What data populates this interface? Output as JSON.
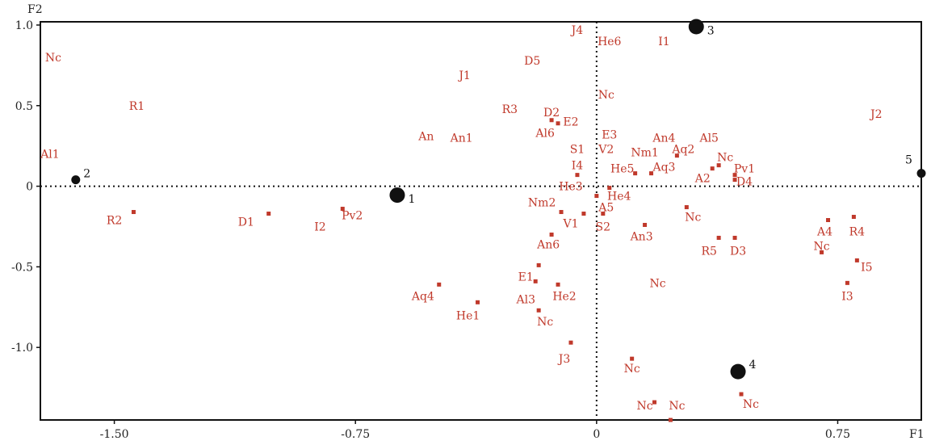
{
  "chart_data": {
    "type": "scatter",
    "title": "",
    "xlabel": "F1",
    "ylabel": "F2",
    "xlim": [
      -1.73,
      1.01
    ],
    "ylim": [
      -1.45,
      1.02
    ],
    "xticks": [
      -1.5,
      -0.75,
      0,
      0.75
    ],
    "xtick_labels": [
      "-1.50",
      "-0.75",
      "0",
      "0.75"
    ],
    "yticks": [
      1.0,
      0.5,
      0,
      -0.5,
      -1.0
    ],
    "ytick_labels": [
      "1.0",
      "0.5",
      "0",
      "-0.5",
      "-1.0"
    ],
    "grid": false,
    "reference_lines": "dotted at x=0 and y=0",
    "label_color": "#c0392b",
    "marker_color": "#c0392b",
    "group_color": "#111111",
    "groups": [
      {
        "name": "1",
        "x": -0.62,
        "y": -0.055,
        "size": "large"
      },
      {
        "name": "2",
        "x": -1.62,
        "y": 0.04,
        "size": "small"
      },
      {
        "name": "3",
        "x": 0.31,
        "y": 0.99,
        "size": "large"
      },
      {
        "name": "4",
        "x": 0.44,
        "y": -1.15,
        "size": "large"
      },
      {
        "name": "5",
        "x": 1.01,
        "y": 0.08,
        "size": "small"
      }
    ],
    "labels": [
      {
        "text": "Nc",
        "x": -1.69,
        "y": 0.8,
        "marker": false
      },
      {
        "text": "R1",
        "x": -1.43,
        "y": 0.5,
        "marker": false
      },
      {
        "text": "Al1",
        "x": -1.7,
        "y": 0.2,
        "marker": false
      },
      {
        "text": "R2",
        "x": -1.5,
        "y": -0.21,
        "mx": -1.44,
        "my": -0.16,
        "marker": true
      },
      {
        "text": "D1",
        "x": -1.09,
        "y": -0.22,
        "mx": -1.02,
        "my": -0.17,
        "marker": true
      },
      {
        "text": "I2",
        "x": -0.86,
        "y": -0.25,
        "marker": false
      },
      {
        "text": "Pv2",
        "x": -0.76,
        "y": -0.18,
        "mx": -0.79,
        "my": -0.14,
        "marker": true
      },
      {
        "text": "J1",
        "x": -0.41,
        "y": 0.69,
        "marker": false
      },
      {
        "text": "D5",
        "x": -0.2,
        "y": 0.78,
        "marker": false
      },
      {
        "text": "R3",
        "x": -0.27,
        "y": 0.48,
        "marker": false
      },
      {
        "text": "An",
        "x": -0.53,
        "y": 0.31,
        "marker": false
      },
      {
        "text": "An1",
        "x": -0.42,
        "y": 0.3,
        "marker": false
      },
      {
        "text": "D2",
        "x": -0.14,
        "y": 0.46,
        "mx": -0.14,
        "my": 0.41,
        "marker": true
      },
      {
        "text": "Al6",
        "x": -0.16,
        "y": 0.33,
        "mx": -0.12,
        "my": 0.39,
        "marker": true
      },
      {
        "text": "E2",
        "x": -0.08,
        "y": 0.4,
        "marker": false
      },
      {
        "text": "J4",
        "x": -0.06,
        "y": 0.97,
        "marker": false
      },
      {
        "text": "He6",
        "x": 0.04,
        "y": 0.9,
        "marker": false
      },
      {
        "text": "I1",
        "x": 0.21,
        "y": 0.9,
        "marker": false
      },
      {
        "text": "Nc",
        "x": 0.03,
        "y": 0.57,
        "marker": false
      },
      {
        "text": "E3",
        "x": 0.04,
        "y": 0.32,
        "marker": false
      },
      {
        "text": "V2",
        "x": 0.03,
        "y": 0.23,
        "marker": false
      },
      {
        "text": "S1",
        "x": -0.06,
        "y": 0.23,
        "marker": false
      },
      {
        "text": "I4",
        "x": -0.06,
        "y": 0.13,
        "mx": -0.06,
        "my": 0.07,
        "marker": true
      },
      {
        "text": "He3",
        "x": -0.08,
        "y": 0.0,
        "marker": false
      },
      {
        "text": "He4",
        "x": 0.07,
        "y": -0.06,
        "mx": 0.04,
        "my": -0.01,
        "marker": true
      },
      {
        "text": "A5",
        "x": 0.03,
        "y": -0.13,
        "mx": 0.0,
        "my": -0.06,
        "marker": true
      },
      {
        "text": "Nm2",
        "x": -0.17,
        "y": -0.1,
        "mx": -0.11,
        "my": -0.16,
        "marker": true
      },
      {
        "text": "V1",
        "x": -0.08,
        "y": -0.23,
        "mx": -0.04,
        "my": -0.17,
        "marker": true
      },
      {
        "text": "S2",
        "x": 0.02,
        "y": -0.25,
        "mx": 0.02,
        "my": -0.17,
        "marker": true
      },
      {
        "text": "An6",
        "x": -0.15,
        "y": -0.36,
        "mx": -0.14,
        "my": -0.3,
        "marker": true
      },
      {
        "text": "An3",
        "x": 0.14,
        "y": -0.31,
        "mx": 0.15,
        "my": -0.24,
        "marker": true
      },
      {
        "text": "An4",
        "x": 0.21,
        "y": 0.3,
        "marker": false
      },
      {
        "text": "Aq2",
        "x": 0.27,
        "y": 0.23,
        "mx": 0.25,
        "my": 0.19,
        "marker": true
      },
      {
        "text": "Nm1",
        "x": 0.15,
        "y": 0.21,
        "marker": false
      },
      {
        "text": "Aq3",
        "x": 0.21,
        "y": 0.12,
        "mx": 0.17,
        "my": 0.08,
        "marker": true
      },
      {
        "text": "He5",
        "x": 0.08,
        "y": 0.11,
        "mx": 0.12,
        "my": 0.08,
        "marker": true
      },
      {
        "text": "Al5",
        "x": 0.35,
        "y": 0.3,
        "marker": false
      },
      {
        "text": "Nc",
        "x": 0.4,
        "y": 0.18,
        "mx": 0.38,
        "my": 0.13,
        "marker": true
      },
      {
        "text": "A2",
        "x": 0.33,
        "y": 0.05,
        "mx": 0.36,
        "my": 0.11,
        "marker": true
      },
      {
        "text": "Pv1",
        "x": 0.46,
        "y": 0.11,
        "mx": 0.43,
        "my": 0.07,
        "marker": true
      },
      {
        "text": "D4",
        "x": 0.46,
        "y": 0.03,
        "mx": 0.43,
        "my": 0.04,
        "marker": true
      },
      {
        "text": "J2",
        "x": 0.87,
        "y": 0.45,
        "marker": false
      },
      {
        "text": "Nc",
        "x": 0.3,
        "y": -0.19,
        "mx": 0.28,
        "my": -0.13,
        "marker": true
      },
      {
        "text": "R5",
        "x": 0.35,
        "y": -0.4,
        "mx": 0.38,
        "my": -0.32,
        "marker": true
      },
      {
        "text": "D3",
        "x": 0.44,
        "y": -0.4,
        "mx": 0.43,
        "my": -0.32,
        "marker": true
      },
      {
        "text": "Nc",
        "x": 0.7,
        "y": -0.37,
        "mx": 0.7,
        "my": -0.41,
        "marker": true
      },
      {
        "text": "A4",
        "x": 0.71,
        "y": -0.28,
        "mx": 0.72,
        "my": -0.21,
        "marker": true
      },
      {
        "text": "R4",
        "x": 0.81,
        "y": -0.28,
        "mx": 0.8,
        "my": -0.19,
        "marker": true
      },
      {
        "text": "I5",
        "x": 0.84,
        "y": -0.5,
        "mx": 0.81,
        "my": -0.46,
        "marker": true
      },
      {
        "text": "I3",
        "x": 0.78,
        "y": -0.68,
        "mx": 0.78,
        "my": -0.6,
        "marker": true
      },
      {
        "text": "Nc",
        "x": 0.19,
        "y": -0.6,
        "marker": false
      },
      {
        "text": "E1",
        "x": -0.22,
        "y": -0.56,
        "mx": -0.18,
        "my": -0.49,
        "marker": true
      },
      {
        "text": "Al3",
        "x": -0.22,
        "y": -0.7,
        "mx": -0.19,
        "my": -0.59,
        "marker": true
      },
      {
        "text": "He2",
        "x": -0.1,
        "y": -0.68,
        "mx": -0.12,
        "my": -0.61,
        "marker": true
      },
      {
        "text": "Aq4",
        "x": -0.54,
        "y": -0.68,
        "mx": -0.49,
        "my": -0.61,
        "marker": true
      },
      {
        "text": "He1",
        "x": -0.4,
        "y": -0.8,
        "mx": -0.37,
        "my": -0.72,
        "marker": true
      },
      {
        "text": "Nc",
        "x": -0.16,
        "y": -0.84,
        "mx": -0.18,
        "my": -0.77,
        "marker": true
      },
      {
        "text": "J3",
        "x": -0.1,
        "y": -1.07,
        "mx": -0.08,
        "my": -0.97,
        "marker": true
      },
      {
        "text": "Nc",
        "x": 0.11,
        "y": -1.13,
        "mx": 0.11,
        "my": -1.07,
        "marker": true
      },
      {
        "text": "Nc",
        "x": 0.15,
        "y": -1.36,
        "mx": 0.18,
        "my": -1.34,
        "marker": true
      },
      {
        "text": "Nc",
        "x": 0.25,
        "y": -1.36,
        "mx": 0.23,
        "my": -1.45,
        "marker": true
      },
      {
        "text": "Nc",
        "x": 0.48,
        "y": -1.35,
        "mx": 0.45,
        "my": -1.29,
        "marker": true
      }
    ]
  }
}
